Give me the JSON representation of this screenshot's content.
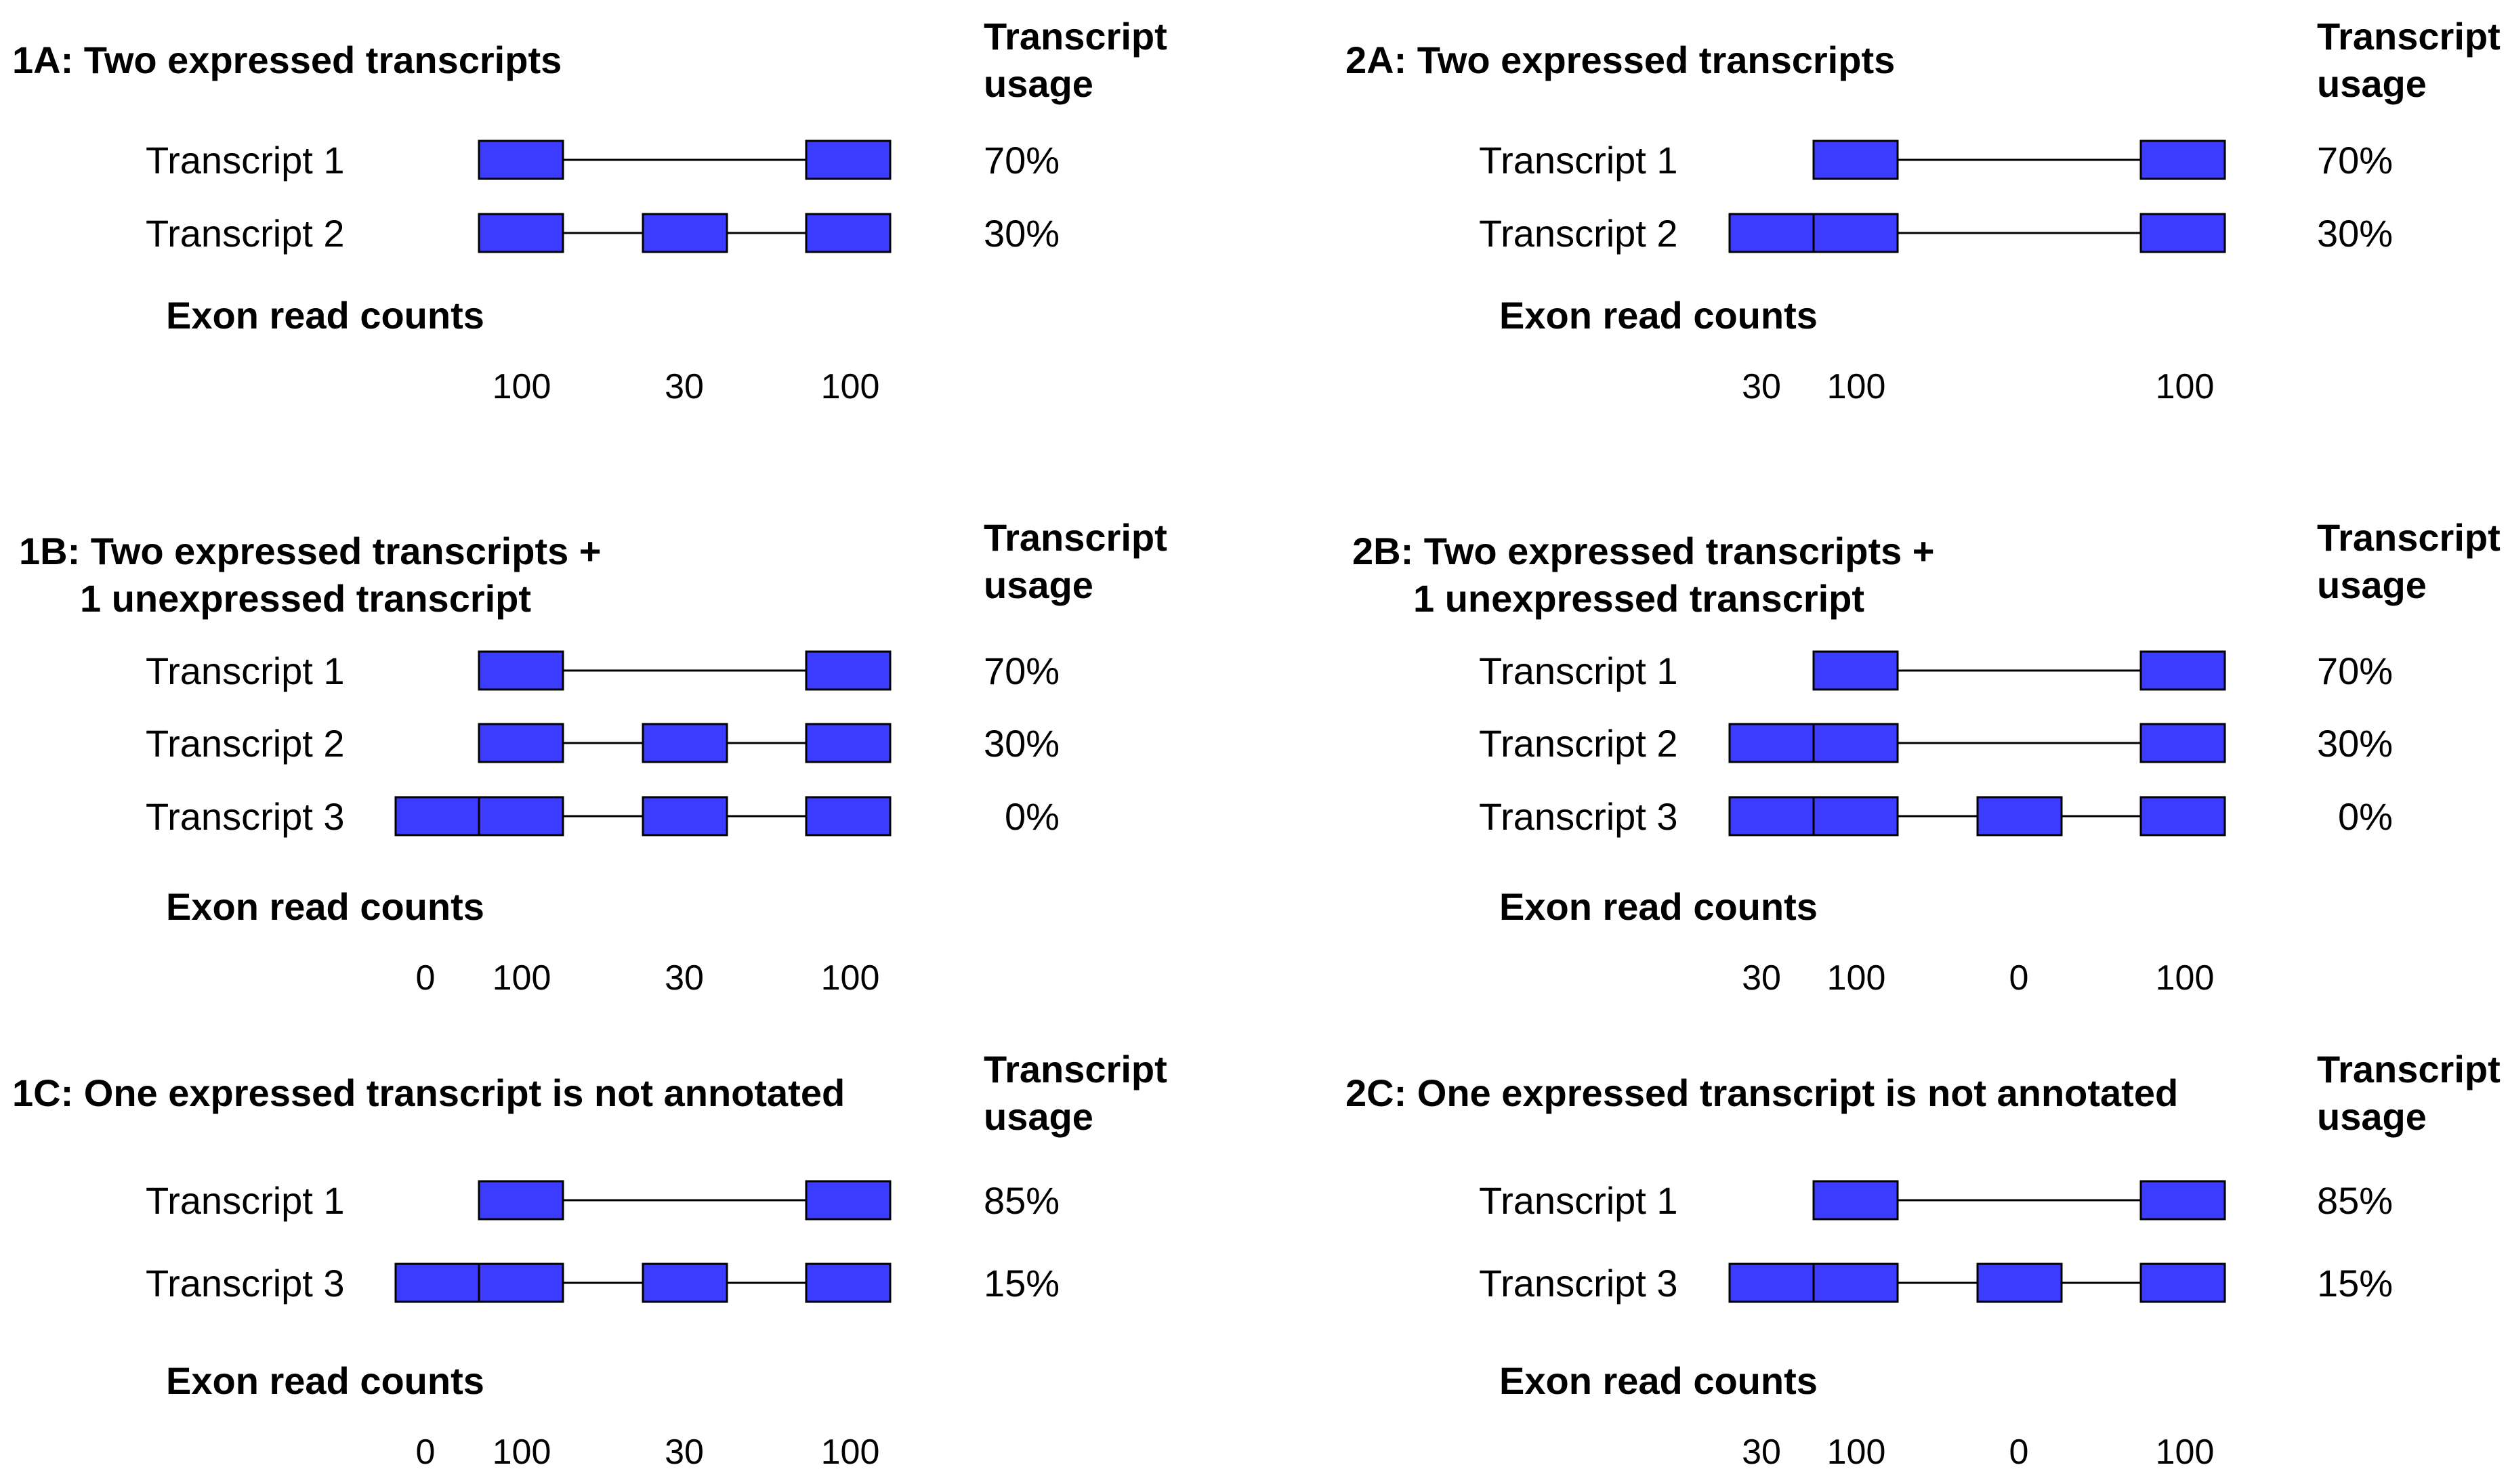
{
  "usage_header": [
    "Transcript",
    "usage"
  ],
  "counts_title": "Exon read counts",
  "colors": {
    "exon": "#3c3cff",
    "line": "#000000"
  },
  "panels": [
    {
      "id": "1A",
      "title_lines": [
        "1A: Two expressed transcripts"
      ],
      "transcripts": [
        {
          "label": "Transcript 1",
          "usage": "70%",
          "exons": [
            1,
            4
          ]
        },
        {
          "label": "Transcript 2",
          "usage": "30%",
          "exons": [
            1,
            3,
            4
          ]
        }
      ],
      "counts": [
        {
          "pos": 1,
          "text": "100"
        },
        {
          "pos": 3,
          "text": "30"
        },
        {
          "pos": 4,
          "text": "100"
        }
      ]
    },
    {
      "id": "1B",
      "title_lines": [
        "1B: Two expressed transcripts +",
        "1 unexpressed transcript"
      ],
      "transcripts": [
        {
          "label": "Transcript 1",
          "usage": "70%",
          "exons": [
            1,
            4
          ]
        },
        {
          "label": "Transcript 2",
          "usage": "30%",
          "exons": [
            1,
            3,
            4
          ]
        },
        {
          "label": "Transcript 3",
          "usage": "0%",
          "exons": [
            0,
            1,
            3,
            4
          ]
        }
      ],
      "counts": [
        {
          "pos": 0,
          "text": "0"
        },
        {
          "pos": 1,
          "text": "100"
        },
        {
          "pos": 3,
          "text": "30"
        },
        {
          "pos": 4,
          "text": "100"
        }
      ]
    },
    {
      "id": "1C",
      "title_lines": [
        "1C: One expressed transcript is not annotated"
      ],
      "transcripts": [
        {
          "label": "Transcript 1",
          "usage": "85%",
          "exons": [
            1,
            4
          ]
        },
        {
          "label": "Transcript 3",
          "usage": "15%",
          "exons": [
            0,
            1,
            3,
            4
          ]
        }
      ],
      "counts": [
        {
          "pos": 0,
          "text": "0"
        },
        {
          "pos": 1,
          "text": "100"
        },
        {
          "pos": 3,
          "text": "30"
        },
        {
          "pos": 4,
          "text": "100"
        }
      ]
    },
    {
      "id": "2A",
      "title_lines": [
        "2A: Two expressed transcripts"
      ],
      "transcripts": [
        {
          "label": "Transcript 1",
          "usage": "70%",
          "exons": [
            1,
            4
          ]
        },
        {
          "label": "Transcript 2",
          "usage": "30%",
          "exons": [
            0,
            1,
            4
          ]
        }
      ],
      "counts": [
        {
          "pos": 0,
          "text": "30"
        },
        {
          "pos": 1,
          "text": "100"
        },
        {
          "pos": 4,
          "text": "100"
        }
      ]
    },
    {
      "id": "2B",
      "title_lines": [
        "2B: Two expressed transcripts +",
        "1 unexpressed transcript"
      ],
      "transcripts": [
        {
          "label": "Transcript 1",
          "usage": "70%",
          "exons": [
            1,
            4
          ]
        },
        {
          "label": "Transcript 2",
          "usage": "30%",
          "exons": [
            0,
            1,
            4
          ]
        },
        {
          "label": "Transcript 3",
          "usage": "0%",
          "exons": [
            0,
            1,
            3,
            4
          ]
        }
      ],
      "counts": [
        {
          "pos": 0,
          "text": "30"
        },
        {
          "pos": 1,
          "text": "100"
        },
        {
          "pos": 3,
          "text": "0"
        },
        {
          "pos": 4,
          "text": "100"
        }
      ]
    },
    {
      "id": "2C",
      "title_lines": [
        "2C: One expressed transcript is not annotated"
      ],
      "transcripts": [
        {
          "label": "Transcript 1",
          "usage": "85%",
          "exons": [
            1,
            4
          ]
        },
        {
          "label": "Transcript 3",
          "usage": "15%",
          "exons": [
            0,
            1,
            3,
            4
          ]
        }
      ],
      "counts": [
        {
          "pos": 0,
          "text": "30"
        },
        {
          "pos": 1,
          "text": "100"
        },
        {
          "pos": 3,
          "text": "0"
        },
        {
          "pos": 4,
          "text": "100"
        }
      ]
    }
  ]
}
